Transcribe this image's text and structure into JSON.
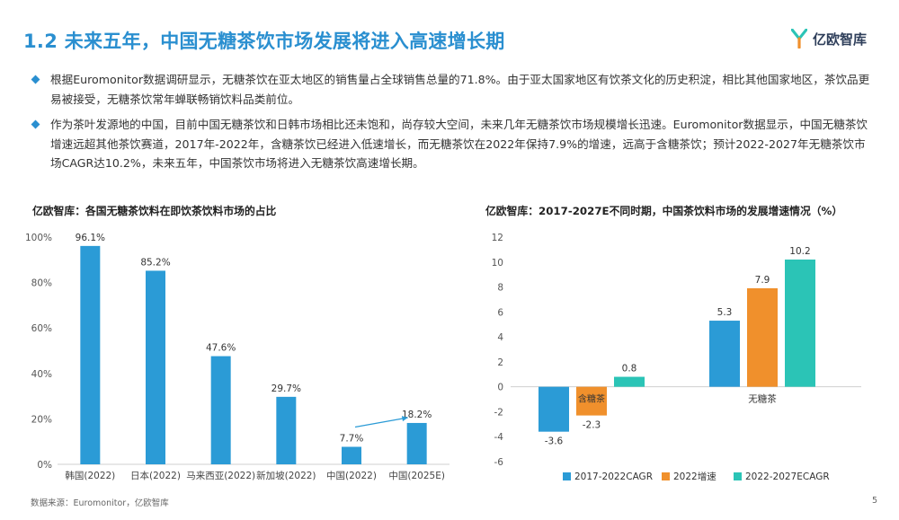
{
  "header": {
    "title": "1.2 未来五年，中国无糖茶饮市场发展将进入高速增长期"
  },
  "logo": {
    "text": "亿欧智库"
  },
  "bullets": [
    "根据Euromonitor数据调研显示，无糖茶饮在亚太地区的销售量占全球销售总量的71.8%。由于亚太国家地区有饮茶文化的历史积淀，相比其他国家地区，茶饮品更易被接受，无糖茶饮常年蝉联畅销饮料品类前位。",
    "作为茶叶发源地的中国，目前中国无糖茶饮和日韩市场相比还未饱和，尚存较大空间，未来几年无糖茶饮市场规模增长迅速。Euromonitor数据显示，中国无糖茶饮增速远超其他茶饮赛道，2017年-2022年，含糖茶饮已经进入低速增长，而无糖茶饮在2022年保持7.9%的增速，远高于含糖茶饮；预计2022-2027年无糖茶饮市场CAGR达10.2%，未来五年，中国茶饮市场将进入无糖茶饮高速增长期。"
  ],
  "colors": {
    "accent": "#2a8fd0",
    "bar_blue": "#2b9bd6",
    "orange": "#f0902c",
    "teal": "#2bc4b6"
  },
  "chart_data": [
    {
      "type": "bar",
      "title": "亿欧智库：各国无糖茶饮料在即饮茶饮料市场的占比",
      "categories": [
        "韩国(2022)",
        "日本(2022)",
        "马来西亚(2022)",
        "新加坡(2022)",
        "中国(2022)",
        "中国(2025E)"
      ],
      "values": [
        96.1,
        85.2,
        47.6,
        29.7,
        7.7,
        18.2
      ],
      "value_labels": [
        "96.1%",
        "85.2%",
        "47.6%",
        "29.7%",
        "7.7%",
        "18.2%"
      ],
      "yticks": [
        "0%",
        "20%",
        "40%",
        "60%",
        "80%",
        "100%"
      ],
      "ylim": [
        0,
        100
      ],
      "grid": false,
      "annotations": [
        "arrow from 中国(2022) to 中国(2025E)"
      ]
    },
    {
      "type": "bar",
      "title": "亿欧智库：2017-2027E不同时期，中国茶饮料市场的发展增速情况（%）",
      "categories": [
        "含糖茶",
        "无糖茶"
      ],
      "category_labels": [
        "含糖茶",
        "无糖茶"
      ],
      "series": [
        {
          "name": "2017-2022CAGR",
          "values": [
            -3.6,
            5.3
          ],
          "labels": [
            "-3.6",
            "5.3"
          ]
        },
        {
          "name": "2022增速",
          "values": [
            -2.3,
            7.9
          ],
          "labels": [
            "-2.3",
            "7.9"
          ]
        },
        {
          "name": "2022-2027ECAGR",
          "values": [
            0.8,
            10.2
          ],
          "labels": [
            "0.8",
            "10.2"
          ]
        }
      ],
      "yticks": [
        "-6",
        "-4",
        "-2",
        "0",
        "2",
        "4",
        "6",
        "8",
        "10",
        "12"
      ],
      "ylim": [
        -6,
        12
      ],
      "grid": false,
      "legend": "bottom"
    }
  ],
  "footer": {
    "source": "数据来源：Euromonitor，亿欧智库",
    "page": "5"
  }
}
